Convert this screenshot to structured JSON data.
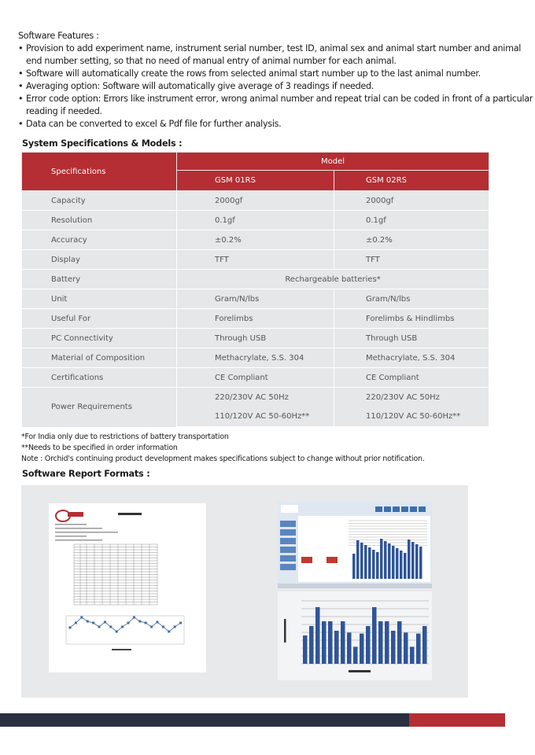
{
  "features": {
    "title": "Software Features :",
    "items": [
      "Provision to add experiment name, instrument serial number, test ID, animal sex and animal start number and animal end number setting, so that no need of manual entry of animal number for each animal.",
      "Software will automatically create the rows from selected animal start number up to the last animal number.",
      "Averaging option: Software will automatically give average of 3 readings if needed.",
      "Error code option: Errors like instrument error, wrong animal number and repeat trial can be coded in front of a particular reading if needed.",
      "Data can be converted to excel & Pdf file for further analysis."
    ]
  },
  "specs": {
    "title": "System Specifications & Models :",
    "header_spec": "Specifications",
    "header_model": "Model",
    "models": [
      "GSM 01RS",
      "GSM 02RS"
    ],
    "rows": [
      [
        "Capacity",
        "2000gf",
        "2000gf"
      ],
      [
        "Resolution",
        "0.1gf",
        "0.1gf"
      ],
      [
        "Accuracy",
        "±0.2%",
        "±0.2%"
      ],
      [
        "Display",
        "TFT",
        "TFT"
      ],
      [
        "Unit",
        "Gram/N/lbs",
        "Gram/N/lbs"
      ],
      [
        "Useful For",
        "Forelimbs",
        "Forelimbs & Hindlimbs"
      ],
      [
        "PC Connectivity",
        "Through USB",
        "Through USB"
      ],
      [
        "Material of Composition",
        "Methacrylate, S.S. 304",
        "Methacrylate, S.S. 304"
      ],
      [
        "Certifications",
        "CE Compliant",
        "CE Compliant"
      ]
    ],
    "battery": {
      "label": "Battery",
      "value": "Rechargeable batteries*"
    },
    "power": {
      "label": "Power Requirements",
      "line1": [
        "220/230V AC 50Hz",
        "220/230V AC 50Hz"
      ],
      "line2": [
        "110/120V AC 50-60Hz**",
        "110/120V AC 50-60Hz**"
      ]
    }
  },
  "notes": [
    "*For India only due to restrictions of battery transportation",
    "**Needs to be specified in order information",
    "Note : Orchid's continuing product development makes specifications subject to change without prior notification."
  ],
  "reports": {
    "title": "Software Report Formats :"
  },
  "colors": {
    "brand_red": "#b42e33",
    "footer_dark": "#2b2f40",
    "row_gray": "#e6e7e8",
    "bar_blue": "#2f5597"
  }
}
